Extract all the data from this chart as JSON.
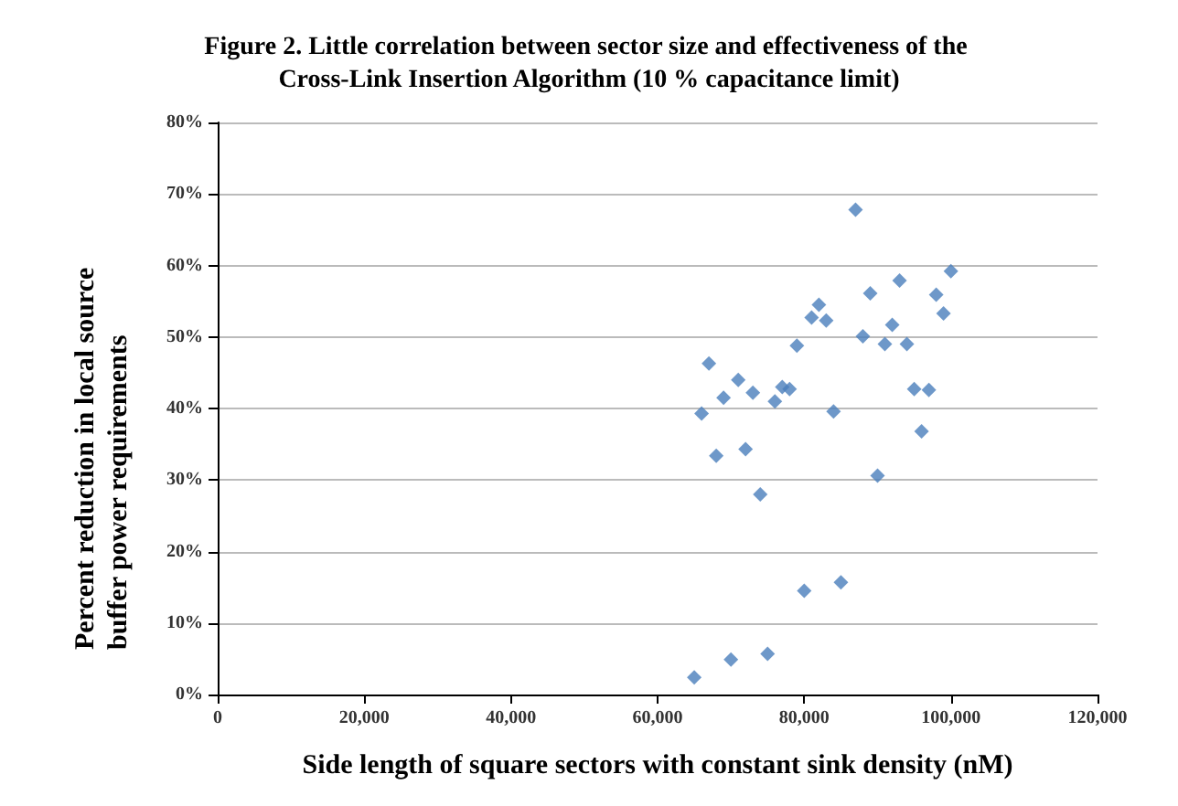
{
  "chart_data": {
    "type": "scatter",
    "title": "Figure 2. Little correlation between sector size and effectiveness of the Cross-Link Insertion Algorithm (10 % capacitance limit)",
    "xlabel": "Side length of square sectors with constant sink density (nM)",
    "ylabel": "Percent reduction in local source buffer power requirements",
    "x": [
      87000,
      100000,
      93000,
      89000,
      98000,
      82000,
      81000,
      83000,
      99000,
      92000,
      88000,
      91000,
      94000,
      79000,
      67000,
      71000,
      69000,
      73000,
      76000,
      77000,
      78000,
      95000,
      97000,
      66000,
      84000,
      96000,
      68000,
      72000,
      90000,
      74000,
      80000,
      85000,
      70000,
      75000,
      65000
    ],
    "series": [
      {
        "color": "#4a7ebb",
        "values": [
          67.8,
          59.2,
          57.9,
          56.1,
          55.9,
          54.5,
          52.7,
          52.3,
          53.3,
          51.7,
          50.1,
          49.0,
          49.0,
          48.8,
          46.3,
          44.0,
          41.5,
          42.2,
          41.0,
          43.0,
          42.7,
          42.7,
          42.6,
          39.3,
          39.6,
          36.8,
          33.4,
          34.3,
          30.6,
          28.0,
          14.5,
          15.7,
          4.9,
          5.7,
          2.4
        ]
      }
    ],
    "xlim": [
      0,
      120000
    ],
    "xticks": [
      0,
      {
        "value": 20000,
        "label": "20,000"
      },
      {
        "value": 40000,
        "label": "40,000"
      },
      {
        "value": 60000,
        "label": "60,000"
      },
      {
        "value": 80000,
        "label": "80,000"
      },
      {
        "value": 100000,
        "label": "100,000"
      },
      {
        "value": 120000,
        "label": "120,000"
      }
    ],
    "ylim": [
      0,
      80
    ],
    "yticks": [
      {
        "value": 0,
        "label": "0%"
      },
      {
        "value": 10,
        "label": "10%"
      },
      {
        "value": 20,
        "label": "20%"
      },
      {
        "value": 30,
        "label": "30%"
      },
      {
        "value": 40,
        "label": "40%"
      },
      {
        "value": 50,
        "label": "50%"
      },
      {
        "value": 60,
        "label": "60%"
      },
      {
        "value": 70,
        "label": "70%"
      },
      {
        "value": 80,
        "label": "80%"
      }
    ],
    "grid": "y",
    "marker": "diamond"
  }
}
